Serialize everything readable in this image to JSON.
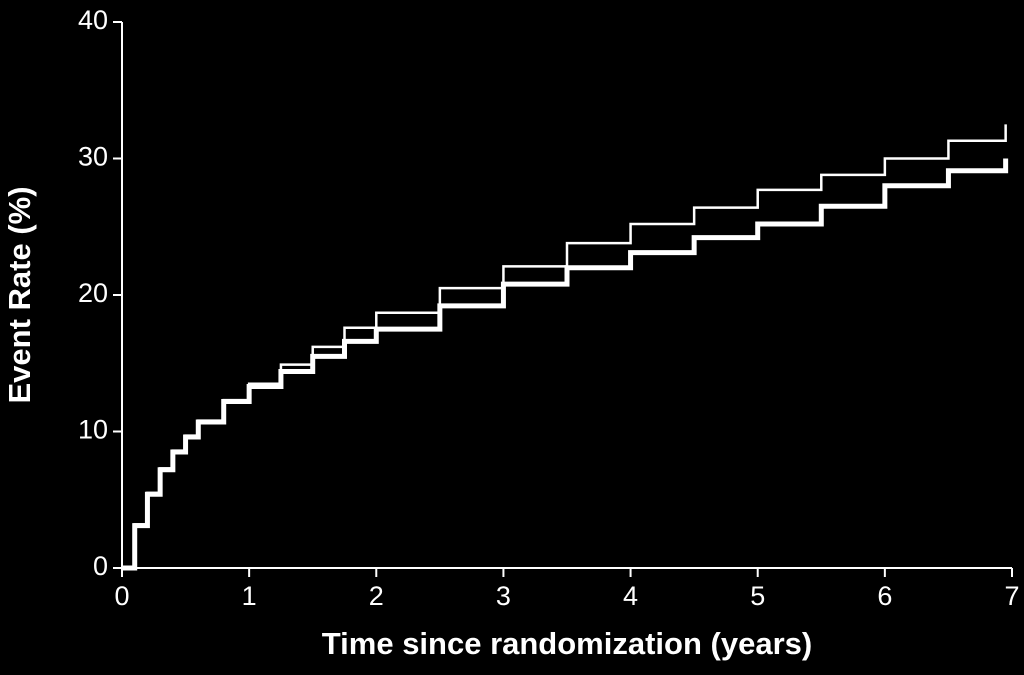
{
  "chart_data": {
    "type": "line",
    "drawstyle": "steps-post",
    "background": "#000000",
    "xlabel": "Time since randomization (years)",
    "ylabel": "Event Rate (%)",
    "x": [
      0,
      0.1,
      0.2,
      0.3,
      0.4,
      0.5,
      0.6,
      0.8,
      1,
      1.25,
      1.5,
      1.75,
      2,
      2.5,
      3,
      3.5,
      4,
      4.5,
      5,
      5.5,
      6,
      6.5,
      6.95
    ],
    "series": [
      {
        "color": "#ffffff",
        "linewidth": 2.5,
        "values": [
          0,
          3.2,
          5.5,
          7.3,
          8.6,
          9.7,
          10.8,
          12.3,
          13.5,
          14.9,
          16.2,
          17.6,
          18.7,
          20.5,
          22.1,
          23.8,
          25.2,
          26.4,
          27.7,
          28.8,
          30.0,
          31.3,
          32.5
        ]
      },
      {
        "color": "#ffffff",
        "linewidth": 5,
        "values": [
          0,
          3.1,
          5.4,
          7.2,
          8.5,
          9.6,
          10.7,
          12.2,
          13.3,
          14.4,
          15.5,
          16.6,
          17.5,
          19.2,
          20.8,
          22.0,
          23.1,
          24.2,
          25.2,
          26.5,
          28.0,
          29.1,
          30.0
        ]
      }
    ],
    "xlim": [
      0,
      7
    ],
    "xticks": [
      0,
      1,
      2,
      3,
      4,
      5,
      6,
      7
    ],
    "ylim": [
      0,
      40
    ],
    "yticks": [
      0,
      10,
      20,
      30,
      40
    ]
  }
}
